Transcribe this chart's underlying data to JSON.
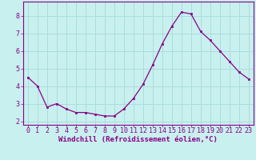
{
  "x": [
    0,
    1,
    2,
    3,
    4,
    5,
    6,
    7,
    8,
    9,
    10,
    11,
    12,
    13,
    14,
    15,
    16,
    17,
    18,
    19,
    20,
    21,
    22,
    23
  ],
  "y": [
    4.5,
    4.0,
    2.8,
    3.0,
    2.7,
    2.5,
    2.5,
    2.4,
    2.3,
    2.3,
    2.7,
    3.3,
    4.1,
    5.2,
    6.4,
    7.4,
    8.2,
    8.1,
    7.1,
    6.6,
    6.0,
    5.4,
    4.8,
    4.4
  ],
  "line_color": "#880088",
  "marker": "s",
  "marker_size": 2,
  "bg_color": "#c8f0ee",
  "grid_color": "#aadddd",
  "axes_color": "#880088",
  "xlabel": "Windchill (Refroidissement éolien,°C)",
  "ylabel": "",
  "ylim_min": 1.8,
  "ylim_max": 8.8,
  "xlim_min": -0.5,
  "xlim_max": 23.5,
  "yticks": [
    2,
    3,
    4,
    5,
    6,
    7,
    8
  ],
  "xticks": [
    0,
    1,
    2,
    3,
    4,
    5,
    6,
    7,
    8,
    9,
    10,
    11,
    12,
    13,
    14,
    15,
    16,
    17,
    18,
    19,
    20,
    21,
    22,
    23
  ],
  "label_fontsize": 6.5,
  "tick_fontsize": 6
}
